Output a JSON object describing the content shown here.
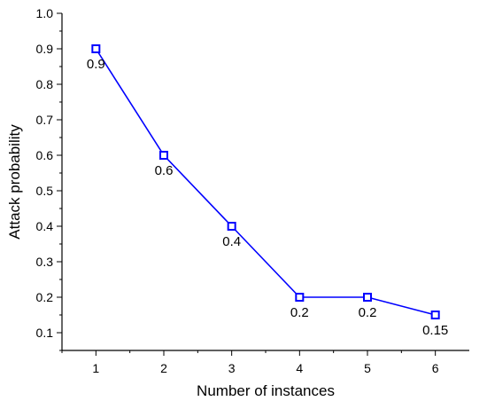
{
  "chart_data": {
    "type": "line",
    "title": "",
    "xlabel": "Number of instances",
    "ylabel": "Attack probability",
    "xlim": [
      0.5,
      6.5
    ],
    "ylim": [
      0.05,
      1.0
    ],
    "x_ticks": [
      1,
      2,
      3,
      4,
      5,
      6
    ],
    "y_ticks": [
      0.1,
      0.2,
      0.3,
      0.4,
      0.5,
      0.6,
      0.7,
      0.8,
      0.9,
      1.0
    ],
    "grid": false,
    "legend": "none",
    "series": [
      {
        "x": [
          1,
          2,
          3,
          4,
          5,
          6
        ],
        "y": [
          0.9,
          0.6,
          0.4,
          0.2,
          0.2,
          0.15
        ],
        "labels": [
          "0.9",
          "0.6",
          "0.4",
          "0.2",
          "0.2",
          "0.15"
        ],
        "color": "#0000ff",
        "marker": "open-square"
      }
    ]
  }
}
